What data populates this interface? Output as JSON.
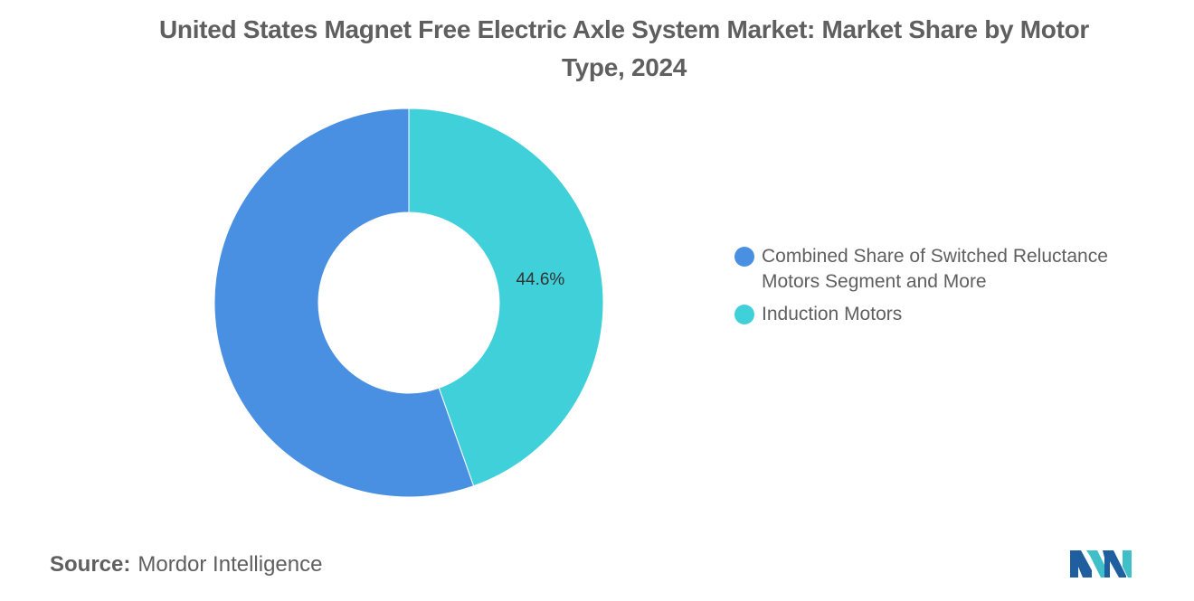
{
  "chart_data": {
    "type": "pie",
    "title": "United States Magnet Free Electric Axle System Market: Market Share by Motor Type, 2024",
    "donut": true,
    "slices": [
      {
        "label": "Induction Motors",
        "value": 44.6,
        "data_label": "44.6%",
        "color": "#3fd0da"
      },
      {
        "label": "Combined Share of Switched Reluctance Motors Segment and More",
        "value": 55.4,
        "data_label": "",
        "color": "#4a90e2"
      }
    ],
    "legend_position": "right"
  },
  "legend": [
    {
      "label": "Combined Share of Switched Reluctance Motors Segment and More",
      "color": "#4a90e2"
    },
    {
      "label": "Induction Motors",
      "color": "#3fd0da"
    }
  ],
  "source": {
    "label": "Source:",
    "text": "Mordor Intelligence"
  },
  "logo": {
    "icon": "mordor-intelligence-logo-icon",
    "colors": [
      "#1f5fa0",
      "#3fc0c8"
    ]
  }
}
